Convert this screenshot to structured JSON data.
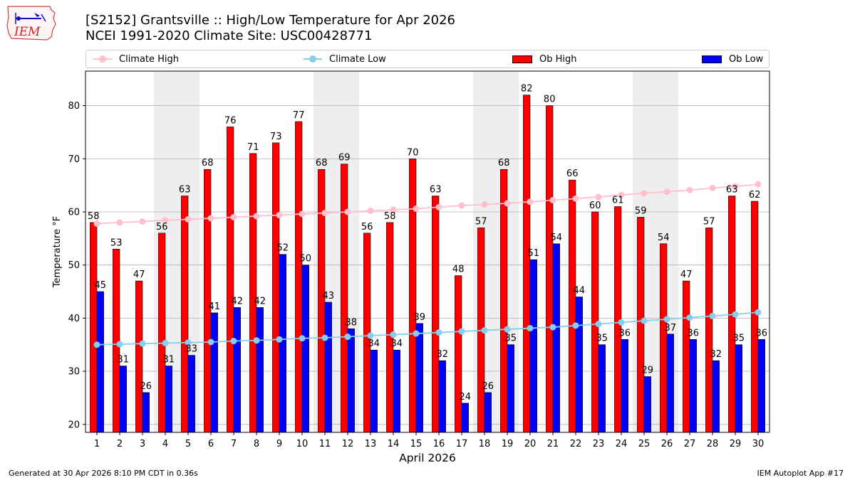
{
  "logo": {
    "text": "IEM"
  },
  "title": {
    "line1": "[S2152] Grantsville :: High/Low Temperature for Apr 2026",
    "line2": "NCEI 1991-2020 Climate Site: USC00428771"
  },
  "legend": {
    "climate_high": "Climate High",
    "climate_low": "Climate Low",
    "ob_high": "Ob High",
    "ob_low": "Ob Low"
  },
  "colors": {
    "ob_high": "#ff0000",
    "ob_low": "#0000ff",
    "climate_high": "#ffc0cb",
    "climate_low": "#87ceeb",
    "weekend_band": "#eeeeee"
  },
  "chart_data": {
    "type": "bar",
    "xlabel": "April 2026",
    "ylabel": "Temperature °F",
    "ylim": [
      18.5,
      86.5
    ],
    "yticks": [
      20,
      30,
      40,
      50,
      60,
      70,
      80
    ],
    "grid": "horizontal",
    "legend_position": "top",
    "categories": [
      1,
      2,
      3,
      4,
      5,
      6,
      7,
      8,
      9,
      10,
      11,
      12,
      13,
      14,
      15,
      16,
      17,
      18,
      19,
      20,
      21,
      22,
      23,
      24,
      25,
      26,
      27,
      28,
      29,
      30
    ],
    "weekend_bands": [
      [
        4,
        5
      ],
      [
        11,
        12
      ],
      [
        18,
        19
      ],
      [
        25,
        26
      ]
    ],
    "series": [
      {
        "name": "Ob High",
        "type": "bar",
        "values": [
          58,
          53,
          47,
          56,
          63,
          68,
          76,
          71,
          73,
          77,
          68,
          69,
          56,
          58,
          70,
          63,
          48,
          57,
          68,
          82,
          80,
          66,
          60,
          61,
          59,
          54,
          47,
          57,
          63,
          62
        ]
      },
      {
        "name": "Ob Low",
        "type": "bar",
        "values": [
          45,
          31,
          26,
          31,
          33,
          41,
          42,
          42,
          52,
          50,
          43,
          38,
          34,
          34,
          39,
          32,
          24,
          26,
          35,
          51,
          54,
          44,
          35,
          36,
          29,
          37,
          36,
          32,
          35,
          36
        ]
      },
      {
        "name": "Climate High",
        "type": "line",
        "values": [
          57.8,
          58.0,
          58.2,
          58.4,
          58.6,
          58.8,
          59.0,
          59.2,
          59.4,
          59.6,
          59.8,
          60.0,
          60.2,
          60.4,
          60.6,
          60.9,
          61.2,
          61.4,
          61.6,
          61.9,
          62.2,
          62.5,
          62.8,
          63.2,
          63.5,
          63.8,
          64.1,
          64.5,
          64.8,
          65.2
        ]
      },
      {
        "name": "Climate Low",
        "type": "line",
        "values": [
          35.0,
          35.1,
          35.2,
          35.3,
          35.4,
          35.5,
          35.7,
          35.8,
          36.0,
          36.2,
          36.3,
          36.5,
          36.7,
          36.9,
          37.1,
          37.3,
          37.5,
          37.7,
          37.9,
          38.1,
          38.3,
          38.6,
          38.9,
          39.2,
          39.5,
          39.8,
          40.1,
          40.4,
          40.7,
          41.1
        ]
      }
    ]
  },
  "footer": {
    "left": "Generated at 30 Apr 2026 8:10 PM CDT in 0.36s",
    "right": "IEM Autoplot App #17"
  }
}
